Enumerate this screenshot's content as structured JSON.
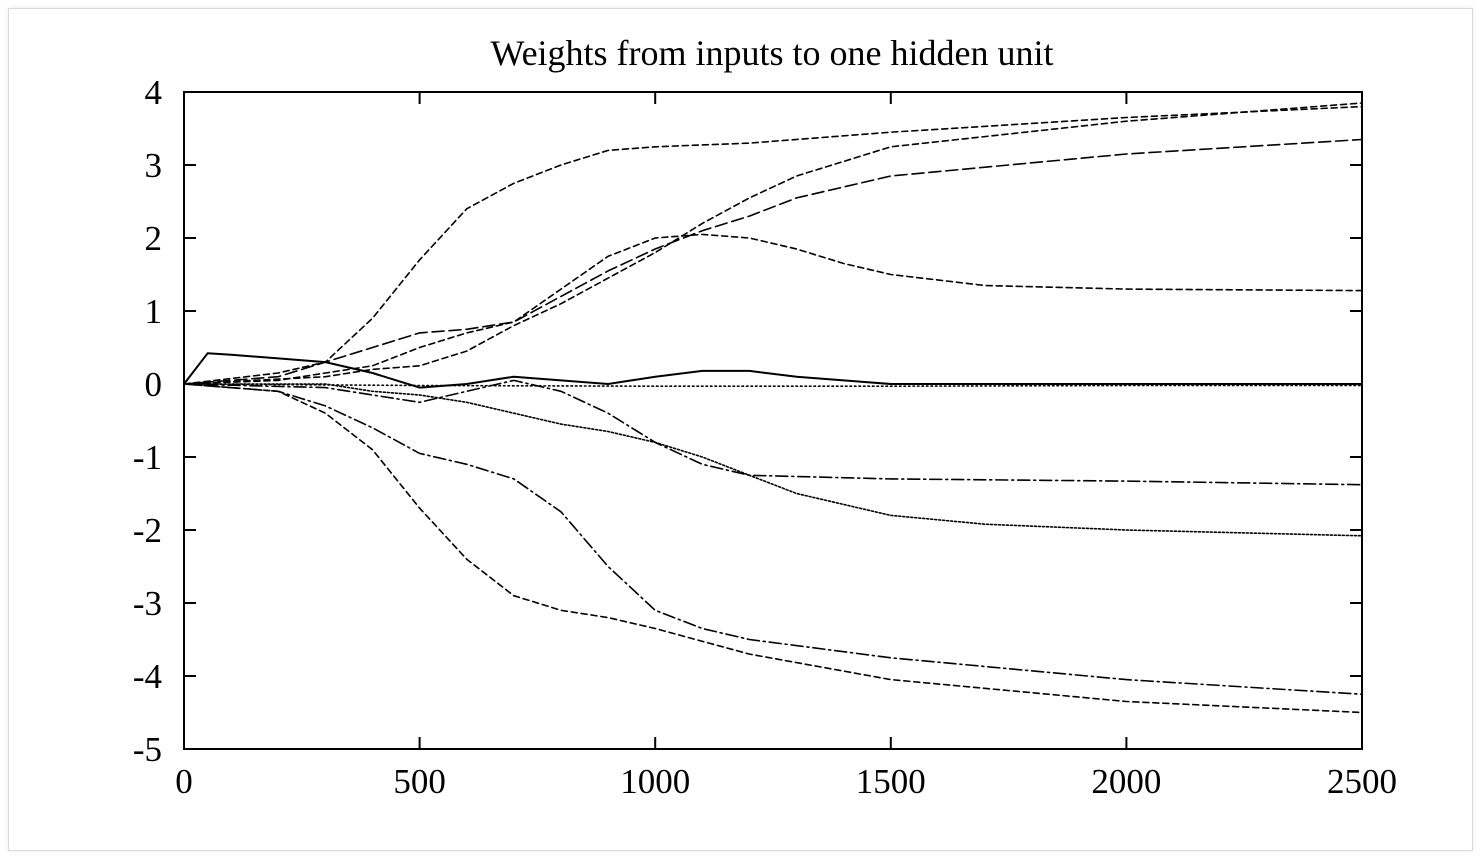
{
  "chart_data": {
    "type": "line",
    "title": "Weights from inputs to one hidden unit",
    "xlabel": "",
    "ylabel": "",
    "xlim": [
      0,
      2500
    ],
    "ylim": [
      -5,
      4
    ],
    "xticks": [
      "0",
      "500",
      "1000",
      "1500",
      "2000",
      "2500"
    ],
    "yticks": [
      "4",
      "3",
      "2",
      "1",
      "0",
      "-1",
      "-2",
      "-3",
      "-4",
      "-5"
    ],
    "xtick_values": [
      0,
      500,
      1000,
      1500,
      2000,
      2500
    ],
    "ytick_values": [
      4,
      3,
      2,
      1,
      0,
      -1,
      -2,
      -3,
      -4,
      -5
    ],
    "grid": false,
    "line_color": "#000000",
    "series": [
      {
        "style": "dashed-fine",
        "x": [
          0,
          200,
          300,
          400,
          500,
          600,
          700,
          800,
          900,
          1000,
          1200,
          1500,
          2000,
          2500
        ],
        "y": [
          0,
          0.15,
          0.3,
          0.9,
          1.7,
          2.4,
          2.75,
          3.0,
          3.2,
          3.25,
          3.3,
          3.45,
          3.65,
          3.8
        ]
      },
      {
        "style": "dashed-fine",
        "x": [
          0,
          300,
          400,
          500,
          600,
          700,
          800,
          900,
          1000,
          1100,
          1200,
          1300,
          1500,
          2000,
          2500
        ],
        "y": [
          0,
          0.1,
          0.2,
          0.25,
          0.45,
          0.8,
          1.1,
          1.45,
          1.8,
          2.2,
          2.55,
          2.85,
          3.25,
          3.6,
          3.85
        ]
      },
      {
        "style": "dashed",
        "x": [
          0,
          200,
          300,
          400,
          500,
          600,
          700,
          800,
          900,
          1000,
          1100,
          1200,
          1300,
          1500,
          2000,
          2500
        ],
        "y": [
          0,
          0.1,
          0.3,
          0.5,
          0.7,
          0.75,
          0.85,
          1.2,
          1.55,
          1.85,
          2.1,
          2.3,
          2.55,
          2.85,
          3.15,
          3.35
        ]
      },
      {
        "style": "dashed-fine",
        "x": [
          0,
          200,
          300,
          400,
          500,
          600,
          700,
          800,
          900,
          1000,
          1100,
          1200,
          1300,
          1400,
          1500,
          1700,
          2000,
          2500
        ],
        "y": [
          0,
          0.05,
          0.15,
          0.25,
          0.5,
          0.7,
          0.85,
          1.3,
          1.75,
          2.0,
          2.05,
          2.0,
          1.85,
          1.65,
          1.5,
          1.35,
          1.3,
          1.28
        ]
      },
      {
        "style": "solid",
        "x": [
          0,
          50,
          100,
          200,
          300,
          400,
          500,
          600,
          700,
          800,
          900,
          1000,
          1100,
          1200,
          1300,
          1400,
          1500,
          2000,
          2500
        ],
        "y": [
          0,
          0.42,
          0.4,
          0.35,
          0.3,
          0.15,
          -0.05,
          0.0,
          0.1,
          0.05,
          0.0,
          0.1,
          0.18,
          0.18,
          0.1,
          0.05,
          0.0,
          0.0,
          0.0
        ]
      },
      {
        "style": "dotted",
        "x": [
          0,
          500,
          1000,
          1500,
          2000,
          2500
        ],
        "y": [
          0,
          -0.02,
          -0.03,
          -0.03,
          -0.02,
          -0.02
        ]
      },
      {
        "style": "dash-dot",
        "x": [
          0,
          300,
          400,
          500,
          600,
          700,
          800,
          900,
          1000,
          1100,
          1200,
          1500,
          2000,
          2500
        ],
        "y": [
          0,
          -0.05,
          -0.15,
          -0.25,
          -0.1,
          0.05,
          -0.1,
          -0.4,
          -0.8,
          -1.1,
          -1.25,
          -1.3,
          -1.33,
          -1.38
        ]
      },
      {
        "style": "dotted-dense",
        "x": [
          0,
          300,
          400,
          500,
          600,
          700,
          800,
          900,
          1000,
          1100,
          1200,
          1300,
          1500,
          1700,
          2000,
          2500
        ],
        "y": [
          0,
          0.0,
          -0.1,
          -0.15,
          -0.25,
          -0.4,
          -0.55,
          -0.65,
          -0.8,
          -1.0,
          -1.25,
          -1.5,
          -1.8,
          -1.92,
          -2.0,
          -2.08
        ]
      },
      {
        "style": "dash-dot",
        "x": [
          0,
          200,
          300,
          400,
          500,
          600,
          700,
          800,
          900,
          1000,
          1100,
          1200,
          1500,
          2000,
          2500
        ],
        "y": [
          0,
          -0.1,
          -0.3,
          -0.6,
          -0.95,
          -1.1,
          -1.3,
          -1.75,
          -2.5,
          -3.1,
          -3.35,
          -3.5,
          -3.75,
          -4.05,
          -4.25
        ]
      },
      {
        "style": "dashed-fine",
        "x": [
          0,
          200,
          300,
          400,
          500,
          600,
          700,
          800,
          900,
          1000,
          1200,
          1500,
          2000,
          2500
        ],
        "y": [
          0,
          -0.1,
          -0.4,
          -0.9,
          -1.7,
          -2.4,
          -2.9,
          -3.1,
          -3.2,
          -3.35,
          -3.7,
          -4.05,
          -4.35,
          -4.5
        ]
      }
    ]
  }
}
